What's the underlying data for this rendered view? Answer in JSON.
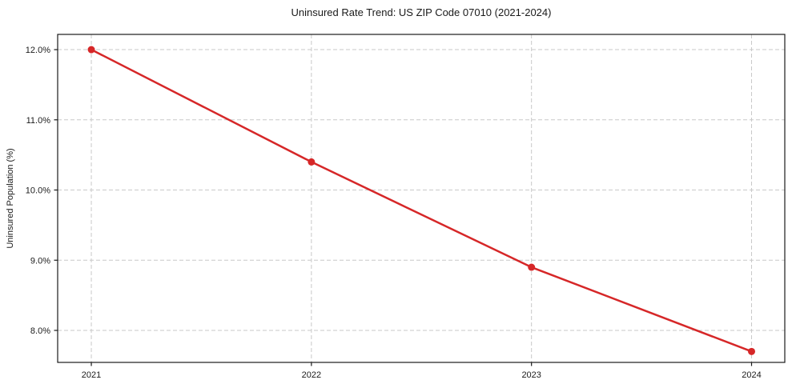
{
  "chart_data": {
    "type": "line",
    "title": "Uninsured Rate Trend: US ZIP Code 07010 (2021-2024)",
    "xlabel": "",
    "ylabel": "Uninsured Population (%)",
    "x": [
      2021,
      2022,
      2023,
      2024
    ],
    "series": [
      {
        "name": "Uninsured rate",
        "values": [
          12.0,
          10.4,
          8.9,
          7.7
        ]
      }
    ],
    "xticks": [
      {
        "value": 2021,
        "label": "2021"
      },
      {
        "value": 2022,
        "label": "2022"
      },
      {
        "value": 2023,
        "label": "2023"
      },
      {
        "value": 2024,
        "label": "2024"
      }
    ],
    "yticks": [
      {
        "value": 8.0,
        "label": "8.0%"
      },
      {
        "value": 9.0,
        "label": "9.0%"
      },
      {
        "value": 10.0,
        "label": "10.0%"
      },
      {
        "value": 11.0,
        "label": "11.0%"
      },
      {
        "value": 12.0,
        "label": "12.0%"
      }
    ],
    "xlim": [
      2020.847,
      2024.151
    ],
    "ylim": [
      7.544,
      12.217
    ],
    "grid": true,
    "grid_style": "dashed",
    "legend": "none",
    "marker": "circle",
    "colors": {
      "line": "#d62728",
      "marker": "#d62728",
      "grid": "#c9c9c9",
      "axis": "#1a1a1a",
      "text": "#1a1a1a",
      "background": "#ffffff"
    }
  }
}
